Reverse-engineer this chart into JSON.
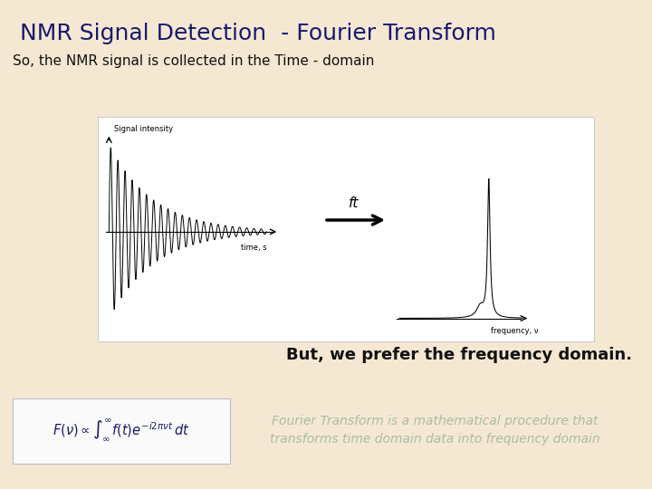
{
  "title": "NMR Signal Detection  - Fourier Transform",
  "title_color": "#191970",
  "title_fontsize": 18,
  "title_fontweight": "normal",
  "subtitle": "So, the NMR signal is collected in the Time - domain",
  "subtitle_fontsize": 11,
  "subtitle_color": "#111111",
  "background_color": "#f5e8d2",
  "panel_bg": "#ffffff",
  "panel_border": "#cccccc",
  "but_text": "But, we prefer the frequency domain.",
  "but_fontsize": 13,
  "but_color": "#111111",
  "ft_label": "ft",
  "time_label": "time, s",
  "freq_label": "frequency, ν",
  "signal_label": "Signal intensity",
  "fourier_text1": "Fourier Transform is a mathematical procedure that",
  "fourier_text2": "transforms time domain data into frequency domain",
  "fourier_color": "#aabba8",
  "fourier_fontsize": 10
}
